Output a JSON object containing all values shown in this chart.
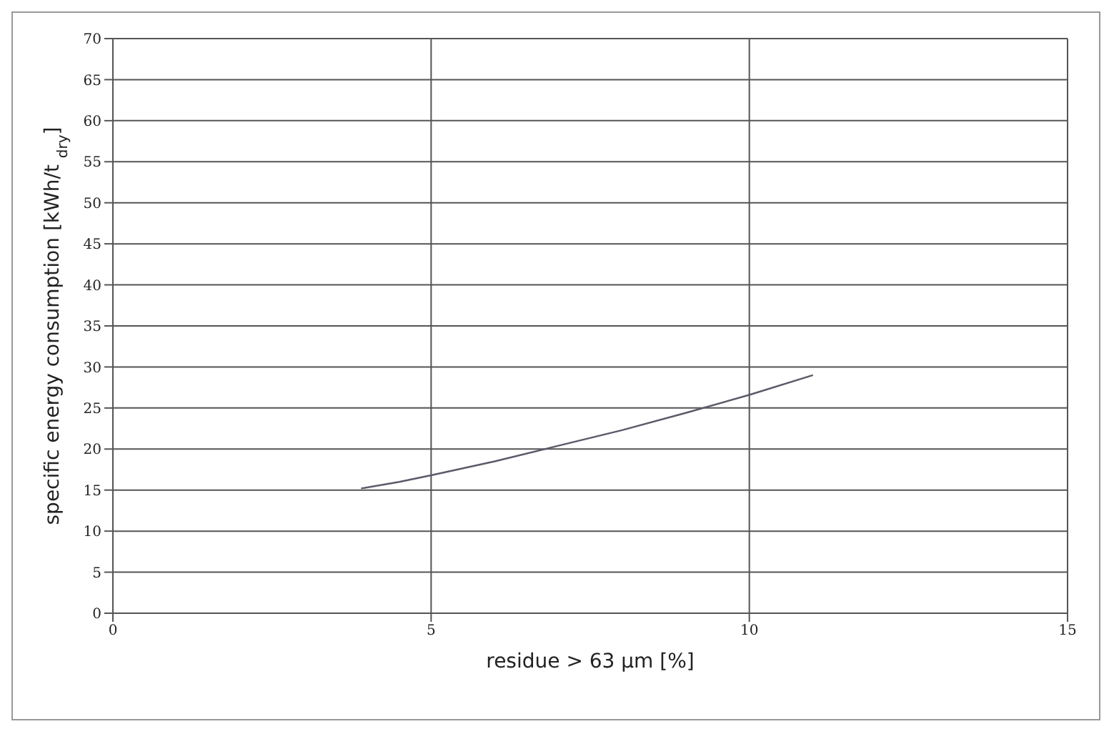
{
  "chart_data": {
    "type": "line",
    "xlabel": "residue > 63 µm [%]",
    "ylabel": "specific energy consumption  [kWh/t $_{dry}$]",
    "series": [
      {
        "color": "#5a5a6a",
        "x": [
          3.9,
          4.5,
          5,
          6,
          7,
          8,
          9,
          10,
          11
        ],
        "values": [
          15.2,
          16.0,
          16.8,
          18.5,
          20.4,
          22.3,
          24.4,
          26.6,
          29.0
        ]
      }
    ],
    "xlim": [
      0,
      15
    ],
    "xticks": [
      0,
      5,
      10,
      15
    ],
    "ylim": [
      0,
      70
    ],
    "yticks": [
      0,
      5,
      10,
      15,
      20,
      25,
      30,
      35,
      40,
      45,
      50,
      55,
      60,
      65,
      70
    ],
    "grid": true,
    "marker": "none",
    "line_style": "solid"
  }
}
